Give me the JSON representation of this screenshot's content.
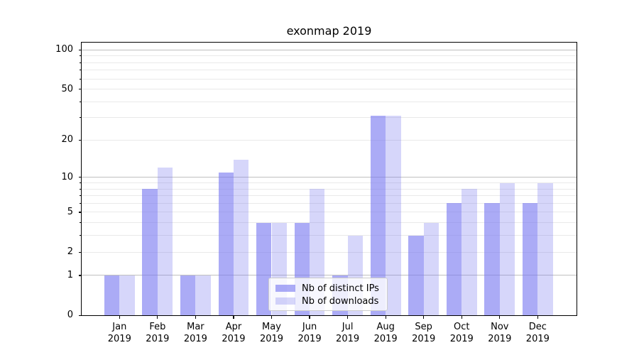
{
  "title": "exonmap 2019",
  "background_color": "#ffffff",
  "legend": {
    "position": "lower center",
    "items": [
      {
        "label": "Nb of distinct IPs",
        "color": "rgba(119,119,240,0.62)"
      },
      {
        "label": "Nb of downloads",
        "color": "rgba(119,119,240,0.30)"
      }
    ]
  },
  "axes": {
    "y_tick_labels": [
      "0",
      "1",
      "2",
      "5",
      "10",
      "20",
      "50",
      "100"
    ],
    "x_tick_labels": [
      "Jan 2019",
      "Feb 2019",
      "Mar 2019",
      "Apr 2019",
      "May 2019",
      "Jun 2019",
      "Jul 2019",
      "Aug 2019",
      "Sep 2019",
      "Oct 2019",
      "Nov 2019",
      "Dec 2019"
    ],
    "major_grid_color": "#c0c0c0",
    "minor_grid_color": "#e9e9e9"
  },
  "chart_data": {
    "type": "bar",
    "title": "exonmap 2019",
    "categories": [
      "Jan 2019",
      "Feb 2019",
      "Mar 2019",
      "Apr 2019",
      "May 2019",
      "Jun 2019",
      "Jul 2019",
      "Aug 2019",
      "Sep 2019",
      "Oct 2019",
      "Nov 2019",
      "Dec 2019"
    ],
    "series": [
      {
        "name": "Nb of distinct IPs",
        "color": "rgba(119,119,240,0.62)",
        "values": [
          1,
          8,
          1,
          11,
          4,
          4,
          1,
          31,
          3,
          6,
          6,
          6
        ]
      },
      {
        "name": "Nb of downloads",
        "color": "rgba(119,119,240,0.30)",
        "values": [
          1,
          12,
          1,
          14,
          4,
          8,
          3,
          31,
          4,
          8,
          9,
          9
        ]
      }
    ],
    "xlabel": "",
    "ylabel": "",
    "y_scale": "log1p",
    "ylim": [
      0,
      113.5
    ],
    "y_major_ticks": [
      0,
      1,
      2,
      5,
      10,
      20,
      50,
      100
    ],
    "y_major_gridlines": [
      1,
      10,
      100
    ],
    "y_minor_gridlines": [
      2,
      3,
      4,
      5,
      6,
      7,
      8,
      9,
      20,
      30,
      40,
      50,
      60,
      70,
      80,
      90
    ],
    "grid": true,
    "legend_position": "lower center"
  }
}
